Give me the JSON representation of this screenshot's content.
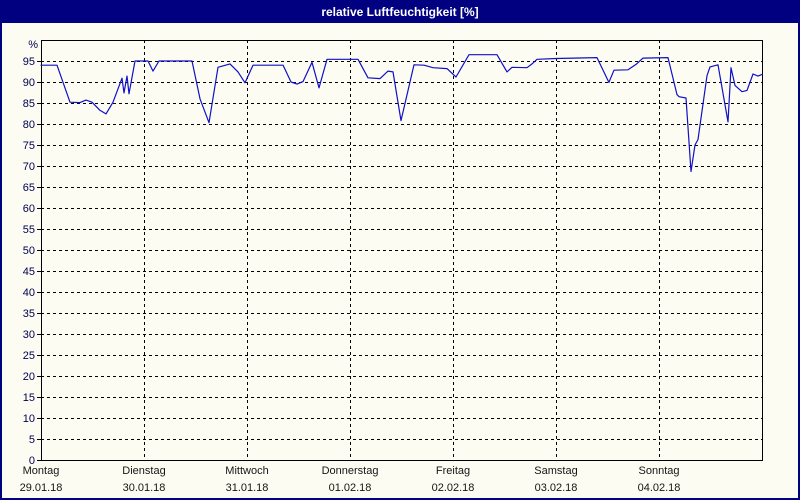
{
  "window": {
    "title": "relative Luftfeuchtigkeit [%]"
  },
  "colors": {
    "titlebar_bg": "#000080",
    "titlebar_text": "#FFFFFF",
    "window_bg": "#FCFCF2",
    "window_border": "#000080",
    "plot_border": "#000000",
    "grid": "#000000",
    "line": "#1010C8",
    "ytick_label": "#000050",
    "xtick_label": "#151515"
  },
  "chart_data": {
    "type": "line",
    "title": "relative Luftfeuchtigkeit [%]",
    "ylabel": "%",
    "ylim": [
      0,
      100
    ],
    "yticks": [
      0,
      5,
      10,
      15,
      20,
      25,
      30,
      35,
      40,
      45,
      50,
      55,
      60,
      65,
      70,
      75,
      80,
      85,
      90,
      95
    ],
    "grid": "dashed",
    "legend": "none",
    "x_days": [
      {
        "name": "Montag",
        "date": "29.01.18"
      },
      {
        "name": "Dienstag",
        "date": "30.01.18"
      },
      {
        "name": "Mittwoch",
        "date": "31.01.18"
      },
      {
        "name": "Donnerstag",
        "date": "01.02.18"
      },
      {
        "name": "Freitag",
        "date": "02.02.18"
      },
      {
        "name": "Samstag",
        "date": "03.02.18"
      },
      {
        "name": "Sonntag",
        "date": "04.02.18"
      }
    ],
    "series": [
      {
        "name": "relative Luftfeuchtigkeit [%]",
        "color": "#1010C8",
        "points": [
          [
            0.0,
            94.0
          ],
          [
            0.155,
            94.0
          ],
          [
            0.282,
            85.2
          ],
          [
            0.379,
            85.1
          ],
          [
            0.437,
            85.7
          ],
          [
            0.495,
            85.2
          ],
          [
            0.57,
            83.3
          ],
          [
            0.631,
            82.4
          ],
          [
            0.699,
            85.2
          ],
          [
            0.786,
            90.9
          ],
          [
            0.806,
            87.4
          ],
          [
            0.835,
            91.4
          ],
          [
            0.854,
            87.2
          ],
          [
            0.913,
            95.0
          ],
          [
            1.039,
            95.0
          ],
          [
            1.087,
            92.6
          ],
          [
            1.146,
            95.0
          ],
          [
            1.466,
            95.0
          ],
          [
            1.544,
            86.0
          ],
          [
            1.631,
            80.3
          ],
          [
            1.718,
            93.5
          ],
          [
            1.835,
            94.3
          ],
          [
            1.913,
            92.4
          ],
          [
            1.981,
            89.8
          ],
          [
            2.058,
            94.0
          ],
          [
            2.35,
            94.0
          ],
          [
            2.427,
            90.0
          ],
          [
            2.485,
            89.5
          ],
          [
            2.544,
            90.1
          ],
          [
            2.631,
            94.7
          ],
          [
            2.699,
            88.6
          ],
          [
            2.777,
            95.4
          ],
          [
            3.078,
            95.4
          ],
          [
            3.175,
            91.0
          ],
          [
            3.291,
            90.8
          ],
          [
            3.369,
            92.6
          ],
          [
            3.417,
            92.4
          ],
          [
            3.495,
            80.8
          ],
          [
            3.621,
            94.1
          ],
          [
            3.718,
            94.0
          ],
          [
            3.806,
            93.4
          ],
          [
            3.942,
            93.2
          ],
          [
            4.029,
            91.2
          ],
          [
            4.155,
            96.5
          ],
          [
            4.427,
            96.5
          ],
          [
            4.524,
            92.4
          ],
          [
            4.573,
            93.5
          ],
          [
            4.718,
            93.4
          ],
          [
            4.767,
            94.3
          ],
          [
            4.816,
            95.4
          ],
          [
            5.0,
            95.6
          ],
          [
            5.398,
            95.8
          ],
          [
            5.514,
            89.9
          ],
          [
            5.563,
            92.8
          ],
          [
            5.699,
            92.9
          ],
          [
            5.777,
            94.2
          ],
          [
            5.845,
            95.7
          ],
          [
            6.087,
            95.8
          ],
          [
            6.175,
            87.0
          ],
          [
            6.194,
            86.5
          ],
          [
            6.262,
            86.2
          ],
          [
            6.311,
            68.7
          ],
          [
            6.35,
            75.0
          ],
          [
            6.379,
            76.3
          ],
          [
            6.466,
            91.5
          ],
          [
            6.495,
            93.6
          ],
          [
            6.573,
            94.1
          ],
          [
            6.67,
            80.5
          ],
          [
            6.699,
            93.4
          ],
          [
            6.738,
            89.2
          ],
          [
            6.806,
            87.7
          ],
          [
            6.854,
            88.0
          ],
          [
            6.913,
            91.9
          ],
          [
            6.961,
            91.4
          ],
          [
            7.0,
            91.8
          ]
        ]
      }
    ]
  }
}
